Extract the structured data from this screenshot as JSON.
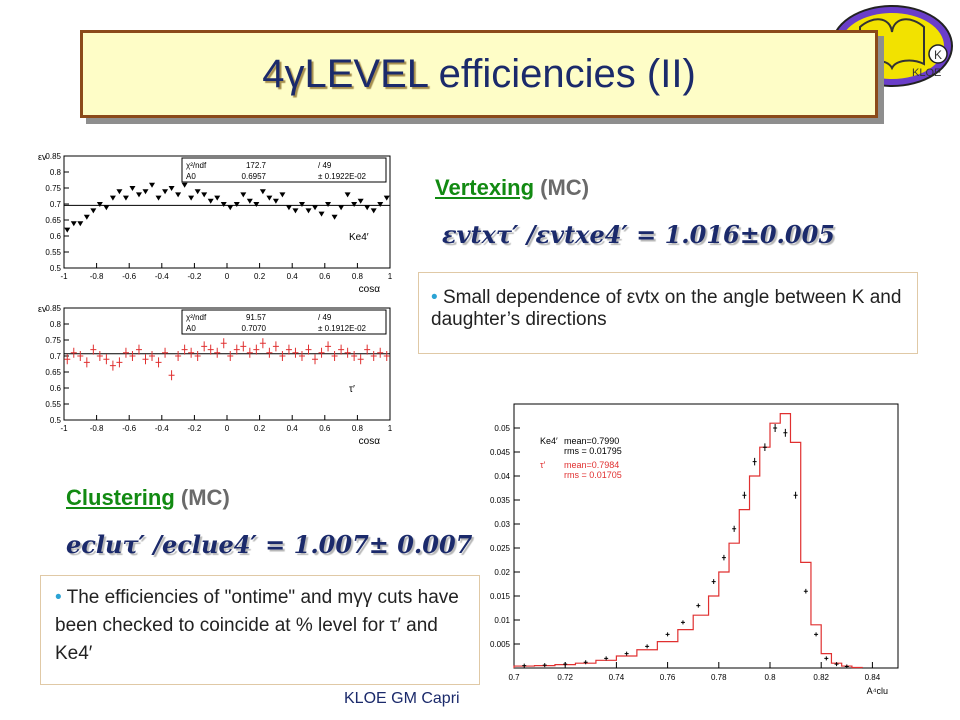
{
  "title": {
    "prefix": "4γLEVEL",
    "rest": " efficiencies (II)"
  },
  "logo": {
    "text": "KLOE",
    "letter": "K"
  },
  "vertexing": {
    "heading": "Vertexing",
    "mc": " (MC)",
    "formula": "εvtxτ′ /εvtxe4′ = 1.016±0.005",
    "note": "Small dependence of εvtx on the angle between K and daughter’s directions"
  },
  "clustering": {
    "heading": "Clustering",
    "mc": " (MC)",
    "formula": "ecluτ′ /ecluе4′ = 1.007± 0.007",
    "note": "The efficiencies of \"ontime\" and mγγ cuts have been checked to coincide at % level for τ′ and Ke4′"
  },
  "footer": "KLOE GM Capri",
  "colors": {
    "title_bg": "#fefdc7",
    "title_border": "#8b4a1a",
    "heading": "#128a12",
    "text": "#1b2a6b",
    "red": "#e03030"
  },
  "chart_data": [
    {
      "type": "scatter",
      "ylabel": "εv",
      "xlabel": "cosα",
      "xlim": [
        -1,
        1
      ],
      "ylim": [
        0.5,
        0.85
      ],
      "xticks": [
        "-1",
        "-0.8",
        "-0.6",
        "-0.4",
        "-0.2",
        "0",
        "0.2",
        "0.4",
        "0.6",
        "0.8",
        "1"
      ],
      "yticks": [
        "0.5",
        "0.55",
        "0.6",
        "0.65",
        "0.7",
        "0.75",
        "0.8",
        "0.85"
      ],
      "stats": [
        [
          "χ²/ndf",
          "172.7",
          "/ 49"
        ],
        [
          "A0",
          "0.6957",
          "± 0.1922E-02"
        ]
      ],
      "label": "Ke4′",
      "fit": 0.6957,
      "color": "#000000",
      "series": [
        {
          "x": [
            -0.98,
            -0.94,
            -0.9,
            -0.86,
            -0.82,
            -0.78,
            -0.74,
            -0.7,
            -0.66,
            -0.62,
            -0.58,
            -0.54,
            -0.5,
            -0.46,
            -0.42,
            -0.38,
            -0.34,
            -0.3,
            -0.26,
            -0.22,
            -0.18,
            -0.14,
            -0.1,
            -0.06,
            -0.02,
            0.02,
            0.06,
            0.1,
            0.14,
            0.18,
            0.22,
            0.26,
            0.3,
            0.34,
            0.38,
            0.42,
            0.46,
            0.5,
            0.54,
            0.58,
            0.62,
            0.66,
            0.7,
            0.74,
            0.78,
            0.82,
            0.86,
            0.9,
            0.94,
            0.98
          ],
          "y": [
            0.62,
            0.64,
            0.64,
            0.66,
            0.68,
            0.7,
            0.69,
            0.72,
            0.74,
            0.72,
            0.75,
            0.73,
            0.74,
            0.76,
            0.72,
            0.74,
            0.75,
            0.73,
            0.76,
            0.72,
            0.74,
            0.73,
            0.71,
            0.72,
            0.7,
            0.69,
            0.7,
            0.73,
            0.71,
            0.7,
            0.74,
            0.72,
            0.71,
            0.73,
            0.69,
            0.68,
            0.7,
            0.68,
            0.69,
            0.67,
            0.7,
            0.66,
            0.69,
            0.73,
            0.7,
            0.71,
            0.69,
            0.68,
            0.7,
            0.72
          ]
        }
      ]
    },
    {
      "type": "scatter",
      "ylabel": "εv",
      "xlabel": "cosα",
      "xlim": [
        -1,
        1
      ],
      "ylim": [
        0.5,
        0.85
      ],
      "xticks": [
        "-1",
        "-0.8",
        "-0.6",
        "-0.4",
        "-0.2",
        "0",
        "0.2",
        "0.4",
        "0.6",
        "0.8",
        "1"
      ],
      "yticks": [
        "0.5",
        "0.55",
        "0.6",
        "0.65",
        "0.7",
        "0.75",
        "0.8",
        "0.85"
      ],
      "stats": [
        [
          "χ²/ndf",
          "91.57",
          "/ 49"
        ],
        [
          "A0",
          "0.7070",
          "± 0.1912E-02"
        ]
      ],
      "label": "τ′",
      "fit": 0.707,
      "color": "#e03030",
      "series": [
        {
          "x": [
            -0.98,
            -0.94,
            -0.9,
            -0.86,
            -0.82,
            -0.78,
            -0.74,
            -0.7,
            -0.66,
            -0.62,
            -0.58,
            -0.54,
            -0.5,
            -0.46,
            -0.42,
            -0.38,
            -0.34,
            -0.3,
            -0.26,
            -0.22,
            -0.18,
            -0.14,
            -0.1,
            -0.06,
            -0.02,
            0.02,
            0.06,
            0.1,
            0.14,
            0.18,
            0.22,
            0.26,
            0.3,
            0.34,
            0.38,
            0.42,
            0.46,
            0.5,
            0.54,
            0.58,
            0.62,
            0.66,
            0.7,
            0.74,
            0.78,
            0.82,
            0.86,
            0.9,
            0.94,
            0.98
          ],
          "y": [
            0.69,
            0.71,
            0.7,
            0.68,
            0.72,
            0.7,
            0.69,
            0.67,
            0.68,
            0.71,
            0.7,
            0.72,
            0.69,
            0.7,
            0.68,
            0.71,
            0.64,
            0.7,
            0.72,
            0.71,
            0.7,
            0.73,
            0.72,
            0.71,
            0.74,
            0.7,
            0.72,
            0.73,
            0.71,
            0.72,
            0.74,
            0.71,
            0.73,
            0.7,
            0.72,
            0.71,
            0.7,
            0.72,
            0.69,
            0.71,
            0.73,
            0.7,
            0.72,
            0.71,
            0.7,
            0.69,
            0.72,
            0.7,
            0.71,
            0.7
          ]
        }
      ]
    },
    {
      "type": "line",
      "xlabel": "A⁴clu",
      "xlim": [
        0.7,
        0.85
      ],
      "ylim": [
        0,
        0.055
      ],
      "xticks": [
        "0.7",
        "0.72",
        "0.74",
        "0.76",
        "0.78",
        "0.8",
        "0.82",
        "0.84"
      ],
      "yticks": [
        "0",
        "0.005",
        "0.01",
        "0.015",
        "0.02",
        "0.025",
        "0.03",
        "0.035",
        "0.04",
        "0.045",
        "0.05"
      ],
      "legend": [
        {
          "name": "Ke4′",
          "mean_label": "mean=0.7990",
          "rms_label": "rms = 0.01795",
          "color": "#000000"
        },
        {
          "name": "τ′",
          "mean_label": "mean=0.7984",
          "rms_label": "rms = 0.01705",
          "color": "#e03030"
        }
      ],
      "series": [
        {
          "name": "Ke4′",
          "style": "errorbars",
          "x": [
            0.704,
            0.712,
            0.72,
            0.728,
            0.736,
            0.744,
            0.752,
            0.76,
            0.766,
            0.772,
            0.778,
            0.782,
            0.786,
            0.79,
            0.794,
            0.798,
            0.802,
            0.806,
            0.81,
            0.814,
            0.818,
            0.822,
            0.826,
            0.83
          ],
          "y": [
            0.0005,
            0.0006,
            0.0008,
            0.0012,
            0.002,
            0.003,
            0.0045,
            0.007,
            0.0095,
            0.013,
            0.018,
            0.023,
            0.029,
            0.036,
            0.043,
            0.046,
            0.05,
            0.049,
            0.036,
            0.016,
            0.007,
            0.002,
            0.0008,
            0.0003
          ]
        },
        {
          "name": "τ′",
          "style": "step",
          "x": [
            0.7,
            0.708,
            0.716,
            0.724,
            0.732,
            0.74,
            0.748,
            0.756,
            0.764,
            0.77,
            0.776,
            0.78,
            0.784,
            0.788,
            0.792,
            0.796,
            0.8,
            0.804,
            0.808,
            0.812,
            0.816,
            0.82,
            0.824,
            0.828,
            0.832
          ],
          "y": [
            0.0004,
            0.0005,
            0.0007,
            0.001,
            0.0016,
            0.0025,
            0.0038,
            0.0055,
            0.008,
            0.011,
            0.015,
            0.02,
            0.026,
            0.033,
            0.04,
            0.046,
            0.051,
            0.053,
            0.047,
            0.022,
            0.009,
            0.003,
            0.001,
            0.0004,
            0.0001
          ]
        }
      ]
    }
  ]
}
